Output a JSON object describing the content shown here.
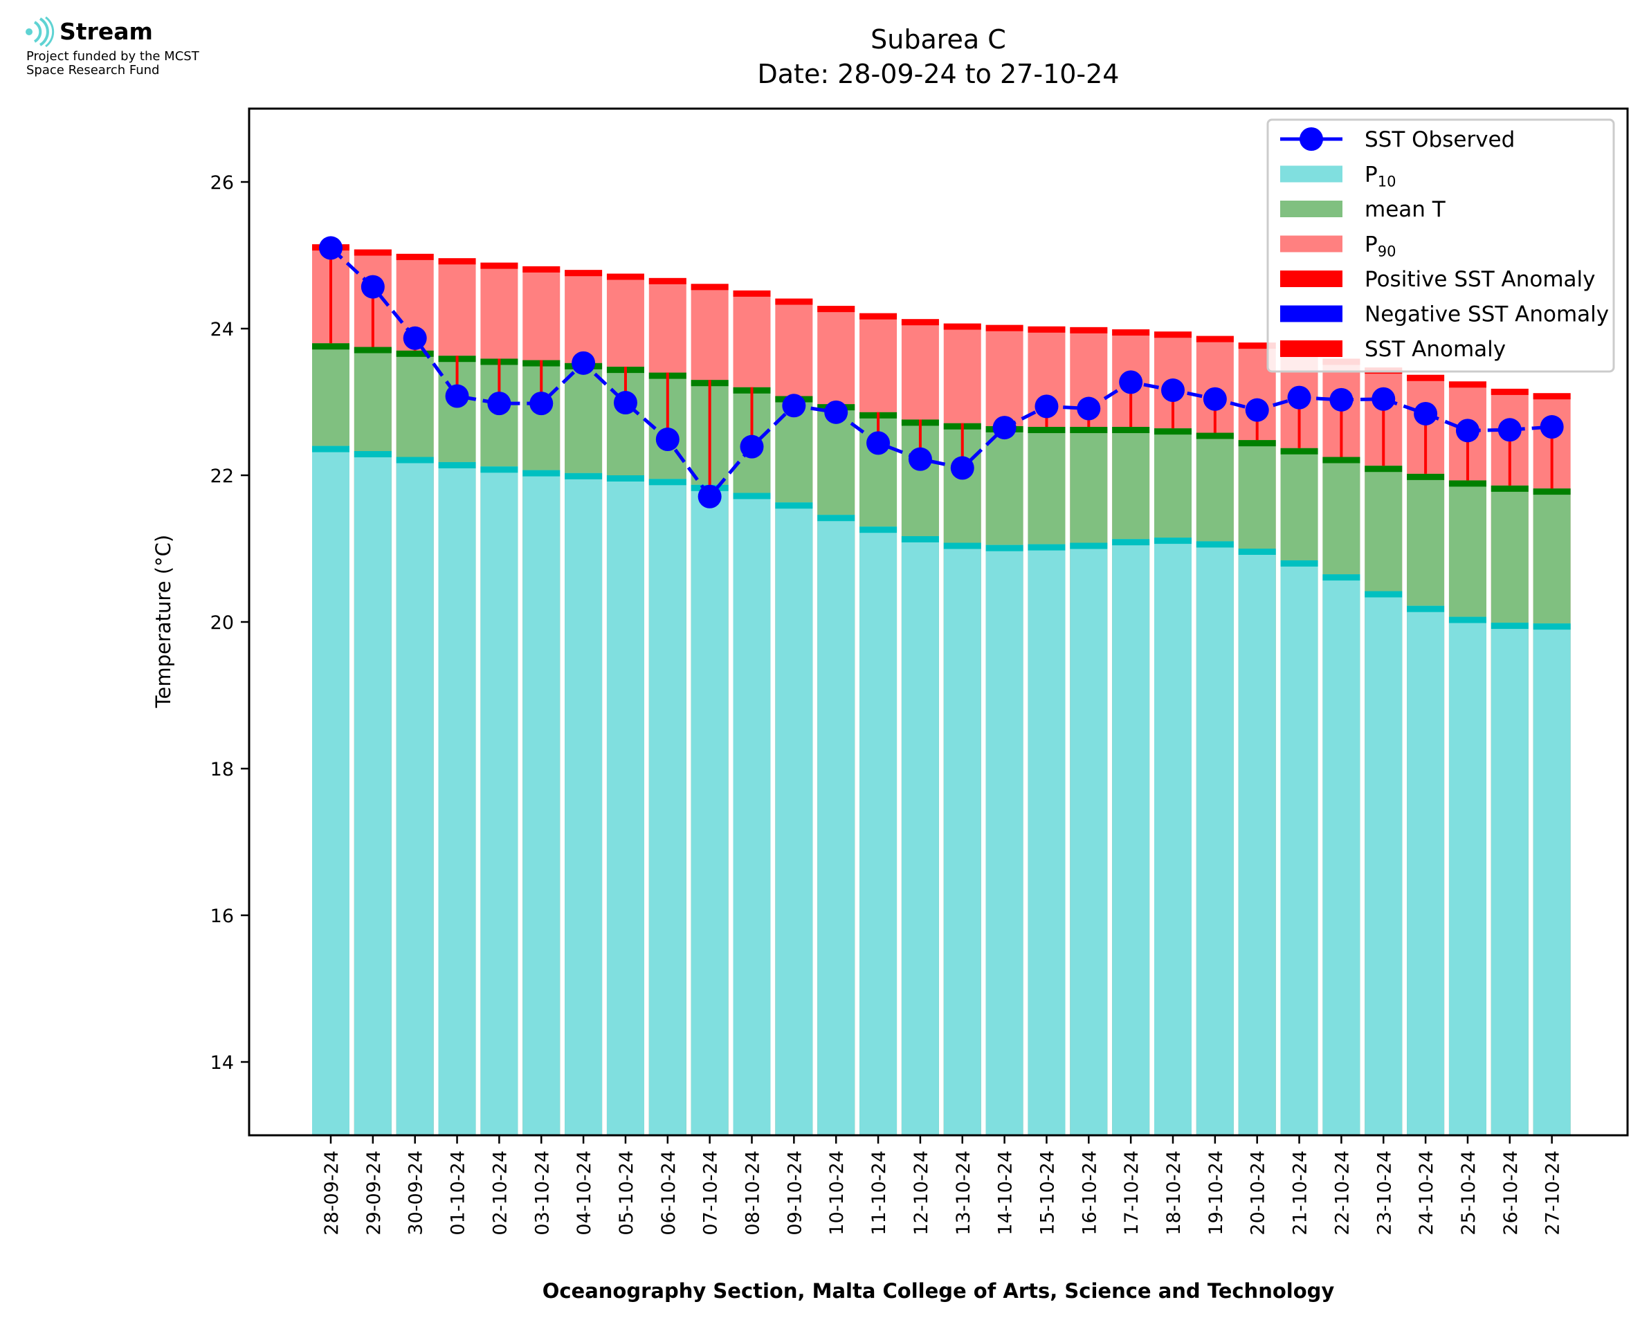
{
  "logo": {
    "name": "Stream",
    "line1": "Project funded by the MCST",
    "line2": "Space Research Fund"
  },
  "chart_data": {
    "type": "bar",
    "title": "Subarea C",
    "subtitle": "Date: 28-09-24 to 27-10-24",
    "xlabel": "Oceanography Section, Malta College of Arts, Science and Technology",
    "ylabel": "Temperature (°C)",
    "ylim": [
      13.0,
      27.0
    ],
    "yticks": [
      14,
      16,
      18,
      20,
      22,
      24,
      26
    ],
    "grid": false,
    "legend_position": "top-right",
    "categories": [
      "28-09-24",
      "29-09-24",
      "30-09-24",
      "01-10-24",
      "02-10-24",
      "03-10-24",
      "04-10-24",
      "05-10-24",
      "06-10-24",
      "07-10-24",
      "08-10-24",
      "09-10-24",
      "10-10-24",
      "11-10-24",
      "12-10-24",
      "13-10-24",
      "14-10-24",
      "15-10-24",
      "16-10-24",
      "17-10-24",
      "18-10-24",
      "19-10-24",
      "20-10-24",
      "21-10-24",
      "22-10-24",
      "23-10-24",
      "24-10-24",
      "25-10-24",
      "26-10-24",
      "27-10-24"
    ],
    "series": [
      {
        "name": "P10",
        "color": "#80dfdf",
        "edge_color": "#00c0c0",
        "values": [
          22.4,
          22.33,
          22.25,
          22.18,
          22.12,
          22.07,
          22.03,
          22.0,
          21.95,
          21.87,
          21.76,
          21.63,
          21.46,
          21.3,
          21.17,
          21.08,
          21.05,
          21.06,
          21.08,
          21.13,
          21.15,
          21.1,
          21.0,
          20.84,
          20.65,
          20.42,
          20.22,
          20.07,
          19.99,
          19.98
        ]
      },
      {
        "name": "mean T",
        "color": "#80c080",
        "edge_color": "#008000",
        "values": [
          23.8,
          23.75,
          23.7,
          23.63,
          23.59,
          23.57,
          23.53,
          23.48,
          23.4,
          23.3,
          23.2,
          23.08,
          22.97,
          22.86,
          22.76,
          22.71,
          22.67,
          22.66,
          22.66,
          22.66,
          22.64,
          22.58,
          22.48,
          22.37,
          22.25,
          22.13,
          22.02,
          21.93,
          21.86,
          21.82
        ]
      },
      {
        "name": "P90",
        "color": "#ff8080",
        "edge_color": "#ff0000",
        "values": [
          25.15,
          25.08,
          25.02,
          24.96,
          24.9,
          24.85,
          24.8,
          24.75,
          24.69,
          24.61,
          24.52,
          24.41,
          24.31,
          24.21,
          24.13,
          24.07,
          24.05,
          24.03,
          24.02,
          23.99,
          23.96,
          23.9,
          23.81,
          23.72,
          23.59,
          23.47,
          23.37,
          23.28,
          23.18,
          23.12
        ]
      },
      {
        "name": "SST Observed",
        "color": "#0000ff",
        "values": [
          25.1,
          24.57,
          23.87,
          23.08,
          22.98,
          22.98,
          23.53,
          22.99,
          22.49,
          21.71,
          22.39,
          22.95,
          22.86,
          22.44,
          22.22,
          22.1,
          22.65,
          22.94,
          22.91,
          23.27,
          23.16,
          23.04,
          22.89,
          23.06,
          23.03,
          23.04,
          22.84,
          22.61,
          22.62,
          22.66
        ]
      }
    ],
    "legend": [
      {
        "label": "SST Observed",
        "sub": "",
        "kind": "line",
        "color": "#0000ff"
      },
      {
        "label": "P",
        "sub": "10",
        "kind": "patch",
        "color": "#80dfdf"
      },
      {
        "label": "mean T",
        "sub": "",
        "kind": "patch",
        "color": "#80c080"
      },
      {
        "label": "P",
        "sub": "90",
        "kind": "patch",
        "color": "#ff8080"
      },
      {
        "label": "Positive SST Anomaly",
        "sub": "",
        "kind": "patch",
        "color": "#ff0000"
      },
      {
        "label": "Negative SST Anomaly",
        "sub": "",
        "kind": "patch",
        "color": "#0000ff"
      },
      {
        "label": "SST Anomaly",
        "sub": "",
        "kind": "patch",
        "color": "#ff0000"
      }
    ],
    "anomaly_color": "#ff0000"
  }
}
